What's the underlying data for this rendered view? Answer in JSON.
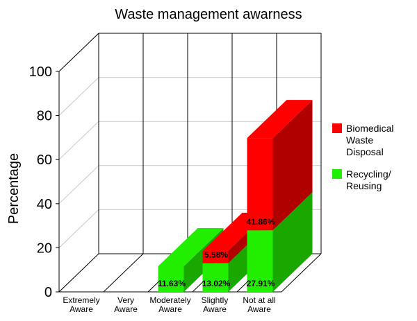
{
  "chart_data": {
    "type": "bar",
    "title": "Waste management awarness",
    "xlabel": "",
    "ylabel": "Percentage",
    "ylim": [
      0,
      100
    ],
    "yticks": [
      0,
      20,
      40,
      60,
      80,
      100
    ],
    "categories": [
      [
        "Extremely",
        "Aware"
      ],
      [
        "Very",
        "Aware"
      ],
      [
        "Moderately",
        "Aware"
      ],
      [
        "Slightly",
        "Aware"
      ],
      [
        "Not at all",
        "Aware"
      ]
    ],
    "stacked": true,
    "three_d": true,
    "grid": true,
    "legend_position": "right",
    "series": [
      {
        "name": "Recycling/ Reusing",
        "legend_lines": [
          "Recycling/",
          "Reusing"
        ],
        "color": "#22ee00",
        "side_color": "#1aa800",
        "values": [
          0,
          0,
          11.63,
          13.02,
          27.91
        ],
        "labels": [
          "",
          "",
          "11.63%",
          "13.02%",
          "27.91%"
        ]
      },
      {
        "name": "Biomedical Waste Disposal",
        "legend_lines": [
          "Biomedical",
          "Waste",
          "Disposal"
        ],
        "color": "#ff0000",
        "side_color": "#b00000",
        "values": [
          0,
          0,
          0,
          5.58,
          41.86
        ],
        "labels": [
          "",
          "",
          "",
          "5.58%",
          "41.86%"
        ]
      }
    ]
  }
}
